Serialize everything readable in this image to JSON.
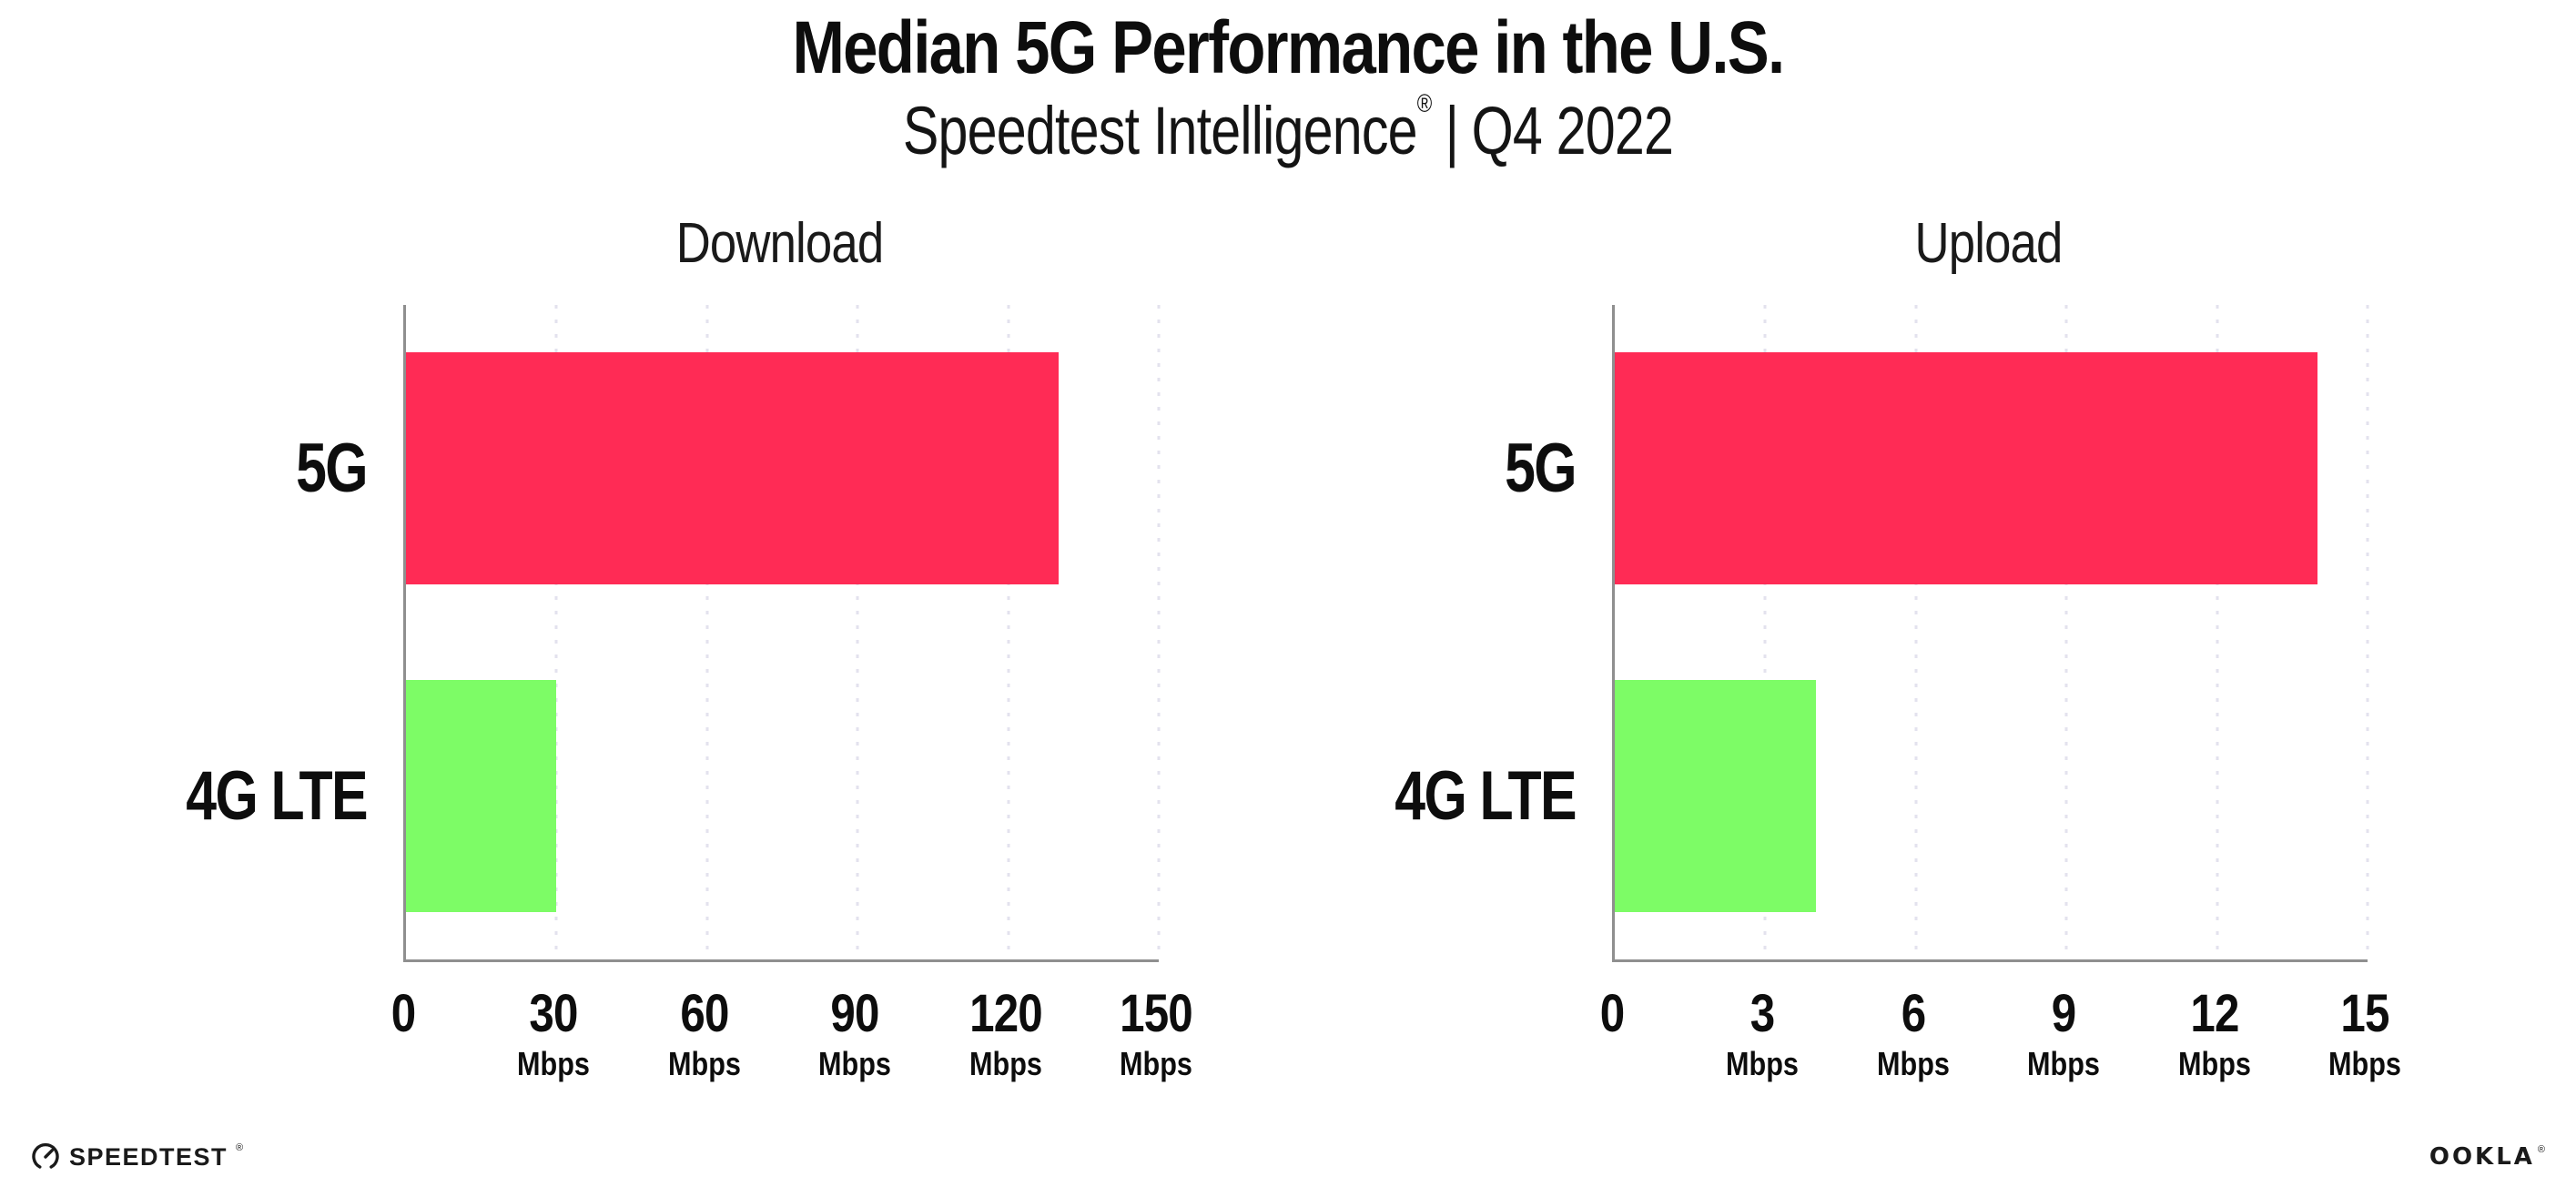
{
  "header": {
    "title": "Median 5G Performance in the U.S.",
    "subtitle_brand": "Speedtest Intelligence",
    "subtitle_reg": "®",
    "subtitle_sep": "|",
    "subtitle_period": "Q4 2022"
  },
  "chart_data": [
    {
      "type": "bar",
      "orientation": "horizontal",
      "title": "Download",
      "categories": [
        "5G",
        "4G LTE"
      ],
      "values": [
        130,
        30
      ],
      "unit": "Mbps",
      "xlabel": "",
      "ylabel": "",
      "xlim": [
        0,
        150
      ],
      "ticks": [
        0,
        30,
        60,
        90,
        120,
        150
      ],
      "bar_colors": [
        "#ff2b55",
        "#7dfc66"
      ],
      "grid": "dotted-vertical",
      "legend": "none"
    },
    {
      "type": "bar",
      "orientation": "horizontal",
      "title": "Upload",
      "categories": [
        "5G",
        "4G LTE"
      ],
      "values": [
        14,
        4
      ],
      "unit": "Mbps",
      "xlabel": "",
      "ylabel": "",
      "xlim": [
        0,
        15
      ],
      "ticks": [
        0,
        3,
        6,
        9,
        12,
        15
      ],
      "bar_colors": [
        "#ff2b55",
        "#7dfc66"
      ],
      "grid": "dotted-vertical",
      "legend": "none"
    }
  ],
  "footer": {
    "speedtest_text": "SPEEDTEST",
    "speedtest_reg": "®",
    "ookla_text": "OOKLA",
    "ookla_reg": "®"
  },
  "colors": {
    "bar_5g": "#ff2b55",
    "bar_4g_lte": "#7dfc66",
    "axis": "#8f8f8f",
    "gridline": "#e3e2ee",
    "text": "#111111",
    "background": "#ffffff"
  }
}
